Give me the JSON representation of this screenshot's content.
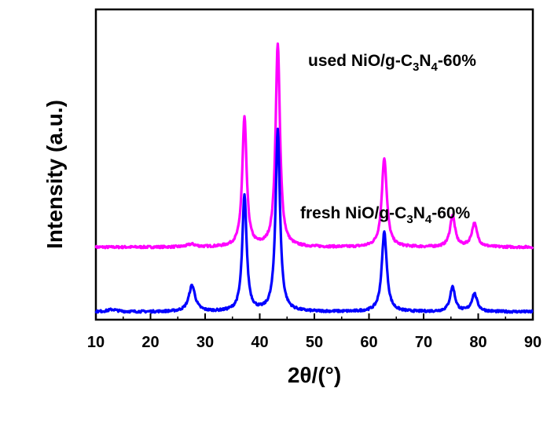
{
  "chart_data": {
    "type": "line",
    "xlabel": "2θ/(°)",
    "ylabel": "Intensity (a.u.)",
    "xlim": [
      10,
      90
    ],
    "xticks": [
      "10",
      "20",
      "30",
      "40",
      "50",
      "60",
      "70",
      "80",
      "90"
    ],
    "y_ticks_shown": false,
    "grid": false,
    "legend": "none",
    "annotations": [
      {
        "pre": "used NiO/g-C",
        "sub1": "3",
        "mid": "N",
        "sub2": "4",
        "post": "-60%"
      },
      {
        "pre": "fresh NiO/g-C",
        "sub1": "3",
        "mid": "N",
        "sub2": "4",
        "post": "-60%"
      }
    ],
    "series": [
      {
        "color": "#ff00ff",
        "baseline": 0.235,
        "noise": 0.004,
        "peaks": [
          {
            "x": 27.5,
            "h": 0.01,
            "w": 0.9
          },
          {
            "x": 37.2,
            "h": 0.47,
            "w": 0.48
          },
          {
            "x": 43.3,
            "h": 0.74,
            "w": 0.48
          },
          {
            "x": 62.8,
            "h": 0.325,
            "w": 0.55
          },
          {
            "x": 75.3,
            "h": 0.115,
            "w": 0.55
          },
          {
            "x": 79.3,
            "h": 0.085,
            "w": 0.6
          }
        ]
      },
      {
        "color": "#0000ff",
        "baseline": 0.0,
        "noise": 0.004,
        "peaks": [
          {
            "x": 13.0,
            "h": 0.008,
            "w": 1.0
          },
          {
            "x": 27.6,
            "h": 0.095,
            "w": 0.7
          },
          {
            "x": 37.2,
            "h": 0.42,
            "w": 0.48
          },
          {
            "x": 43.3,
            "h": 0.66,
            "w": 0.48
          },
          {
            "x": 62.8,
            "h": 0.29,
            "w": 0.55
          },
          {
            "x": 75.3,
            "h": 0.09,
            "w": 0.55
          },
          {
            "x": 79.3,
            "h": 0.065,
            "w": 0.6
          }
        ]
      }
    ]
  }
}
